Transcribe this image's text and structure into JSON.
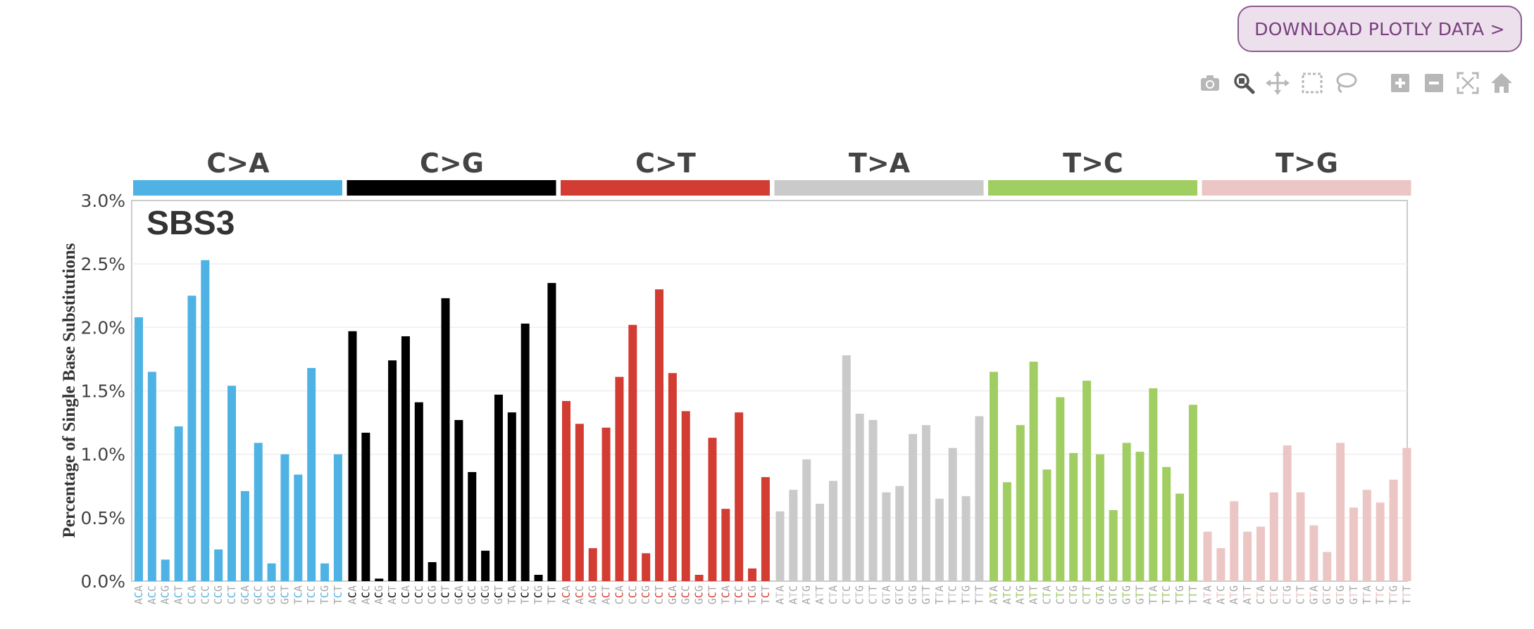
{
  "download_button": {
    "label": "DOWNLOAD PLOTLY DATA >"
  },
  "modebar": {
    "icons": [
      "camera-icon",
      "zoom-icon",
      "pan-icon",
      "box-select-icon",
      "lasso-icon",
      "zoom-in-icon",
      "zoom-out-icon",
      "autoscale-icon",
      "home-icon"
    ],
    "active": "zoom-icon"
  },
  "chart_data": {
    "type": "bar",
    "title": "SBS3",
    "ylabel": "Percentage of Single Base Substitutions",
    "ylim": [
      0,
      3.0
    ],
    "yticks": [
      "0.0%",
      "0.5%",
      "1.0%",
      "1.5%",
      "2.0%",
      "2.5%",
      "3.0%"
    ],
    "grid": true,
    "categories": [
      {
        "name": "C>A",
        "color": "#4eb3e4",
        "contexts": [
          "ACA",
          "ACC",
          "ACG",
          "ACT",
          "CCA",
          "CCC",
          "CCG",
          "CCT",
          "GCA",
          "GCC",
          "GCG",
          "GCT",
          "TCA",
          "TCC",
          "TCG",
          "TCT"
        ],
        "values": [
          2.08,
          1.65,
          0.17,
          1.22,
          2.25,
          2.53,
          0.25,
          1.54,
          0.71,
          1.09,
          0.14,
          1.0,
          0.84,
          1.68,
          0.14,
          1.0
        ]
      },
      {
        "name": "C>G",
        "color": "#000000",
        "contexts": [
          "ACA",
          "ACC",
          "ACG",
          "ACT",
          "CCA",
          "CCC",
          "CCG",
          "CCT",
          "GCA",
          "GCC",
          "GCG",
          "GCT",
          "TCA",
          "TCC",
          "TCG",
          "TCT"
        ],
        "values": [
          1.97,
          1.17,
          0.02,
          1.74,
          1.93,
          1.41,
          0.15,
          2.23,
          1.27,
          0.86,
          0.24,
          1.47,
          1.33,
          2.03,
          0.05,
          2.35
        ]
      },
      {
        "name": "C>T",
        "color": "#d33c32",
        "contexts": [
          "ACA",
          "ACC",
          "ACG",
          "ACT",
          "CCA",
          "CCC",
          "CCG",
          "CCT",
          "GCA",
          "GCC",
          "GCG",
          "GCT",
          "TCA",
          "TCC",
          "TCG",
          "TCT"
        ],
        "values": [
          1.42,
          1.24,
          0.26,
          1.21,
          1.61,
          2.02,
          0.22,
          2.3,
          1.64,
          1.34,
          0.05,
          1.13,
          0.57,
          1.33,
          0.1,
          0.82
        ]
      },
      {
        "name": "T>A",
        "color": "#cbcacb",
        "contexts": [
          "ATA",
          "ATC",
          "ATG",
          "ATT",
          "CTA",
          "CTC",
          "CTG",
          "CTT",
          "GTA",
          "GTC",
          "GTG",
          "GTT",
          "TTA",
          "TTC",
          "TTG",
          "TTT"
        ],
        "values": [
          0.55,
          0.72,
          0.96,
          0.61,
          0.79,
          1.78,
          1.32,
          1.27,
          0.7,
          0.75,
          1.16,
          1.23,
          0.65,
          1.05,
          0.67,
          1.3
        ]
      },
      {
        "name": "T>C",
        "color": "#a1ce63",
        "contexts": [
          "ATA",
          "ATC",
          "ATG",
          "ATT",
          "CTA",
          "CTC",
          "CTG",
          "CTT",
          "GTA",
          "GTC",
          "GTG",
          "GTT",
          "TTA",
          "TTC",
          "TTG",
          "TTT"
        ],
        "values": [
          1.65,
          0.78,
          1.23,
          1.73,
          0.88,
          1.45,
          1.01,
          1.58,
          1.0,
          0.56,
          1.09,
          1.02,
          1.52,
          0.9,
          0.69,
          1.39
        ]
      },
      {
        "name": "T>G",
        "color": "#ebc6c4",
        "contexts": [
          "ATA",
          "ATC",
          "ATG",
          "ATT",
          "CTA",
          "CTC",
          "CTG",
          "CTT",
          "GTA",
          "GTC",
          "GTG",
          "GTT",
          "TTA",
          "TTC",
          "TTG",
          "TTT"
        ],
        "values": [
          0.39,
          0.26,
          0.63,
          0.39,
          0.43,
          0.7,
          1.07,
          0.7,
          0.44,
          0.23,
          1.09,
          0.58,
          0.72,
          0.62,
          0.8,
          1.05
        ]
      }
    ]
  }
}
